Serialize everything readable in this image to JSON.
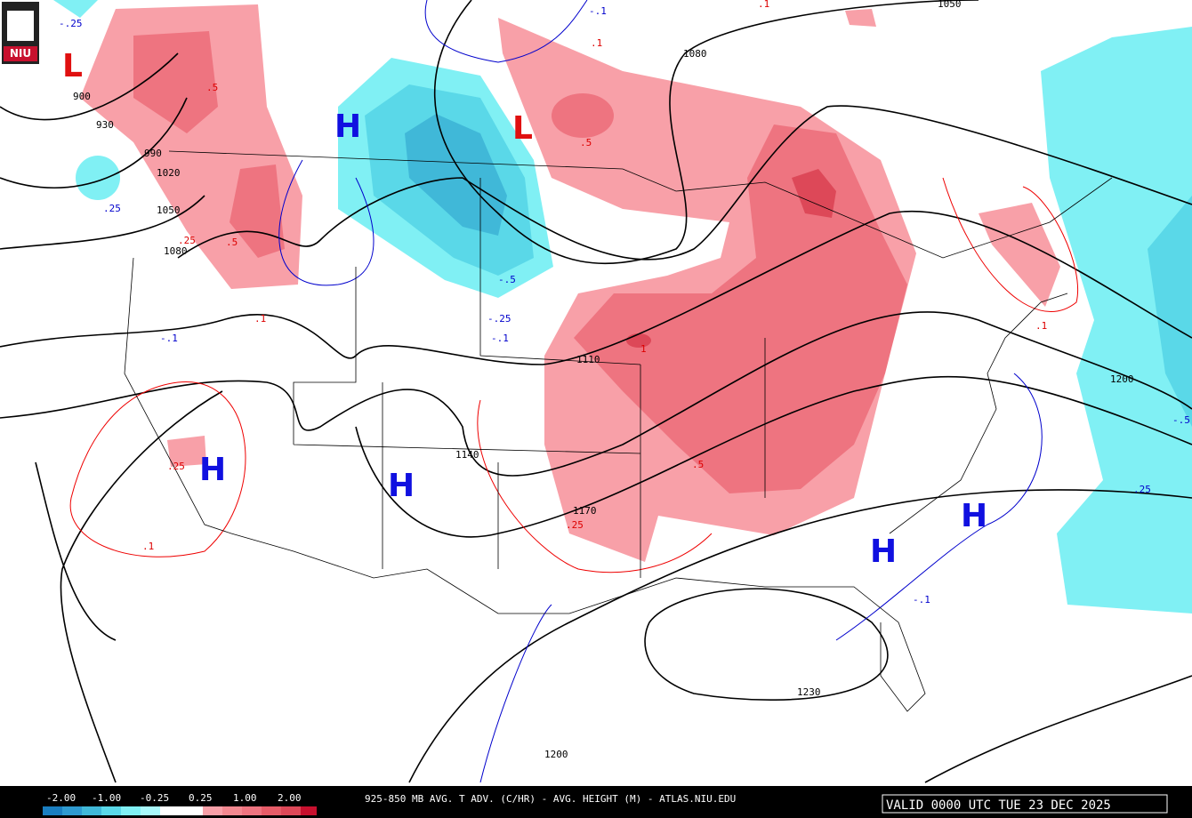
{
  "logo": "NIU",
  "centers": [
    "L",
    "H",
    "L",
    "H",
    "H",
    "H",
    "H"
  ],
  "height_labels": [
    "900",
    "930",
    "990",
    "1020",
    "1050",
    "1080",
    "1050",
    "1080",
    "1110",
    "1140",
    "1170",
    "1200",
    "1200",
    "1230"
  ],
  "warm_labels": [
    ".5",
    ".5",
    ".5",
    ".25",
    ".1",
    "1",
    ".5",
    ".25",
    ".1",
    ".25",
    ".1",
    ".1",
    ".1"
  ],
  "cold_labels": [
    "-.1",
    "-.25",
    "-.5",
    "-.25",
    "-.1",
    "-.1",
    ".25",
    "-.5",
    "-.1",
    ".25"
  ],
  "colorbar": [
    "-2.00",
    "-1.00",
    "-0.25",
    "0.25",
    "1.00",
    "2.00"
  ],
  "title": "925-850 MB AVG. T ADV. (C/HR) - AVG. HEIGHT (M) - ATLAS.NIU.EDU",
  "valid": "VALID 0000 UTC TUE 23 DEC 2025"
}
